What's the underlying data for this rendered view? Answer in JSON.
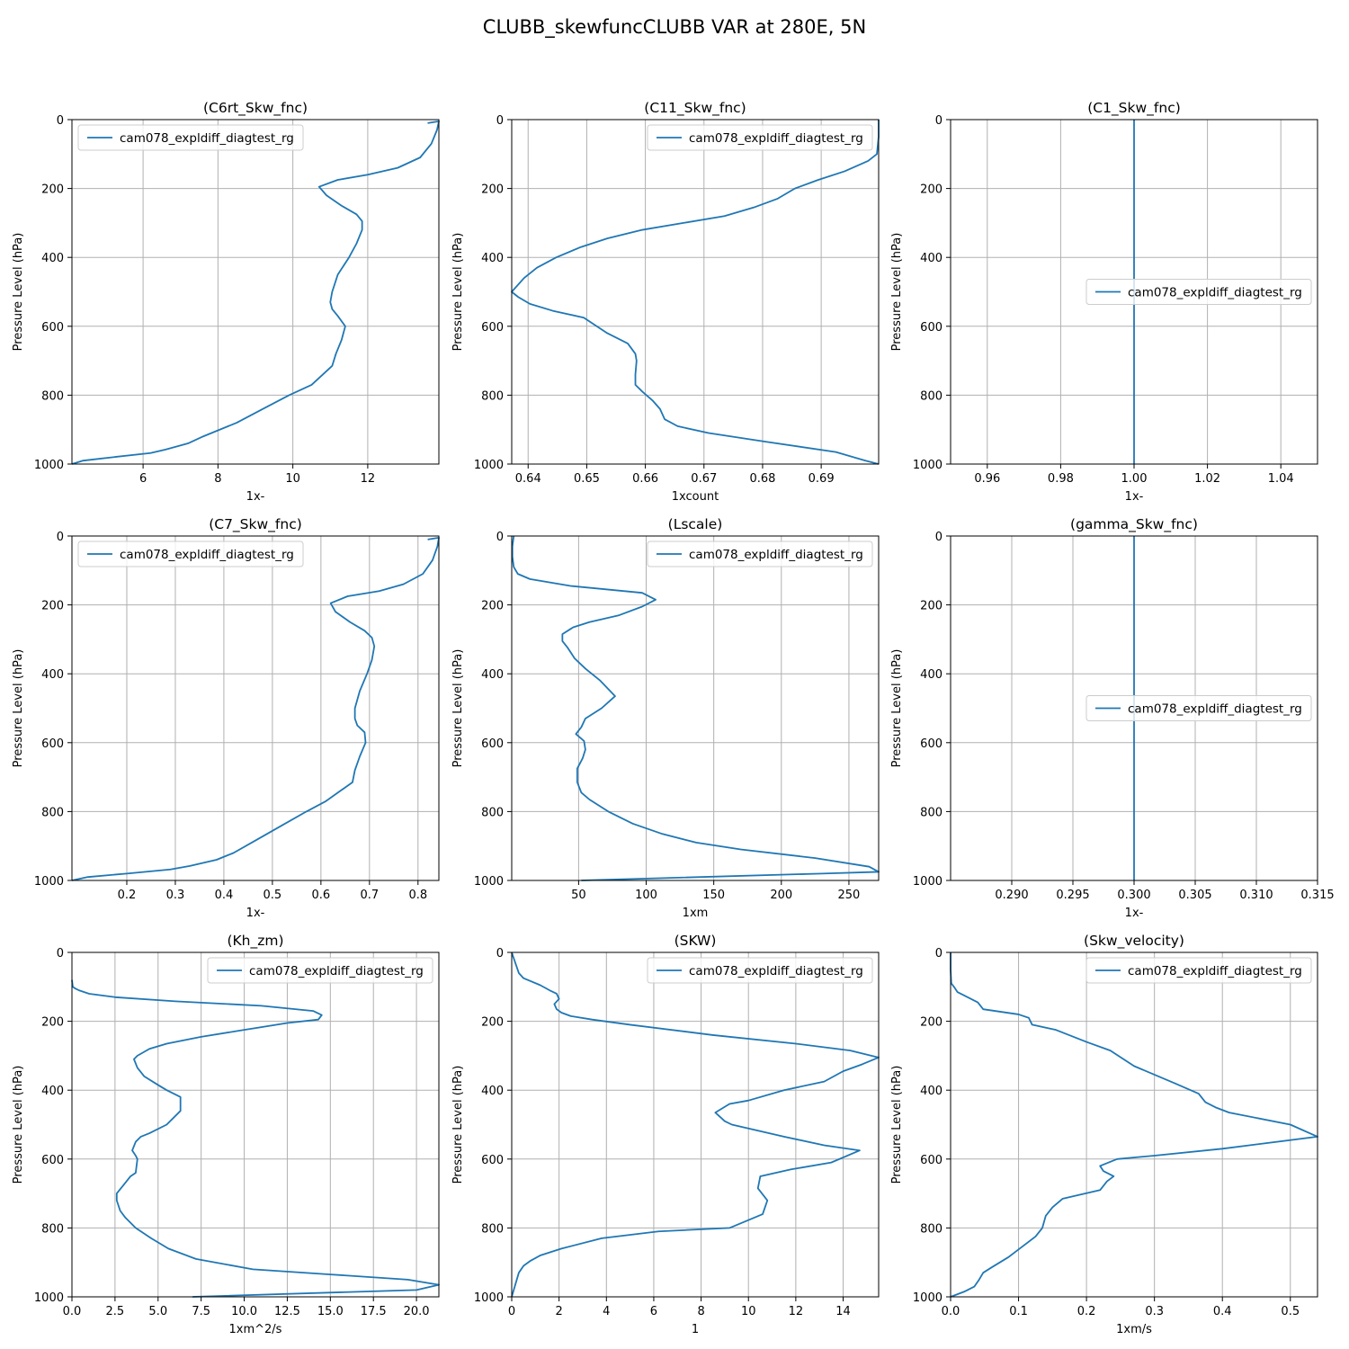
{
  "figure": {
    "title": "CLUBB_skewfuncCLUBB VAR at 280E, 5N",
    "line_color": "#1f77b4"
  },
  "chart_data": [
    {
      "type": "line",
      "title": "(C6rt_Skw_fnc)",
      "xlabel": "1x-",
      "ylabel": "Pressure Level (hPa)",
      "xlim": [
        4.1,
        13.9
      ],
      "ylim": [
        1000,
        0
      ],
      "y_inverted": true,
      "xticks": [
        6,
        8,
        10,
        12
      ],
      "xtick_labels": [
        "6",
        "8",
        "10",
        "12"
      ],
      "yticks": [
        0,
        200,
        400,
        600,
        800,
        1000
      ],
      "ytick_labels": [
        "0",
        "200",
        "400",
        "600",
        "800",
        "1000"
      ],
      "grid": true,
      "legend_position": "upper-left",
      "series": [
        {
          "name": "cam078_expldiff_diagtest_rg",
          "x": [
            13.6,
            13.9,
            13.85,
            13.7,
            13.4,
            12.8,
            12.0,
            11.2,
            10.7,
            10.9,
            11.3,
            11.7,
            11.85,
            11.85,
            11.7,
            11.5,
            11.2,
            11.05,
            11.0,
            11.05,
            11.2,
            11.4,
            11.3,
            11.15,
            11.05,
            10.8,
            10.5,
            9.9,
            9.2,
            8.5,
            7.6,
            7.2,
            6.6,
            6.2,
            5.2,
            4.4,
            4.1
          ],
          "y": [
            10,
            5,
            30,
            70,
            110,
            140,
            160,
            175,
            195,
            220,
            250,
            275,
            295,
            320,
            360,
            400,
            450,
            500,
            530,
            550,
            570,
            600,
            640,
            680,
            715,
            740,
            770,
            800,
            840,
            880,
            920,
            940,
            958,
            968,
            980,
            990,
            1000
          ]
        }
      ]
    },
    {
      "type": "line",
      "title": "(C11_Skw_fnc)",
      "xlabel": "1xcount",
      "ylabel": "Pressure Level (hPa)",
      "xlim": [
        0.6372,
        0.6998
      ],
      "ylim": [
        1000,
        0
      ],
      "y_inverted": true,
      "xticks": [
        0.64,
        0.65,
        0.66,
        0.67,
        0.68,
        0.69
      ],
      "xtick_labels": [
        "0.64",
        "0.65",
        "0.66",
        "0.67",
        "0.68",
        "0.69"
      ],
      "yticks": [
        0,
        200,
        400,
        600,
        800,
        1000
      ],
      "ytick_labels": [
        "0",
        "200",
        "400",
        "600",
        "800",
        "1000"
      ],
      "grid": true,
      "legend_position": "upper-right",
      "series": [
        {
          "name": "cam078_expldiff_diagtest_rg",
          "x": [
            0.6998,
            0.6998,
            0.6995,
            0.698,
            0.694,
            0.6895,
            0.6855,
            0.6825,
            0.6785,
            0.6735,
            0.6665,
            0.6595,
            0.6535,
            0.649,
            0.6448,
            0.6415,
            0.6393,
            0.6372,
            0.6383,
            0.6403,
            0.6442,
            0.6495,
            0.6535,
            0.657,
            0.6583,
            0.6585,
            0.6583,
            0.6583,
            0.6595,
            0.6612,
            0.6625,
            0.6633,
            0.6655,
            0.6708,
            0.6805,
            0.6925,
            0.6975,
            0.6998
          ],
          "y": [
            0,
            50,
            100,
            120,
            150,
            175,
            200,
            230,
            255,
            280,
            300,
            320,
            345,
            370,
            400,
            430,
            460,
            500,
            515,
            535,
            555,
            575,
            620,
            650,
            680,
            700,
            740,
            770,
            790,
            815,
            840,
            870,
            890,
            910,
            935,
            965,
            990,
            1000
          ]
        }
      ]
    },
    {
      "type": "line",
      "title": "(C1_Skw_fnc)",
      "xlabel": "1x-",
      "ylabel": "Pressure Level (hPa)",
      "xlim": [
        0.95,
        1.05
      ],
      "ylim": [
        1000,
        0
      ],
      "y_inverted": true,
      "xticks": [
        0.96,
        0.98,
        1.0,
        1.02,
        1.04
      ],
      "xtick_labels": [
        "0.96",
        "0.98",
        "1.00",
        "1.02",
        "1.04"
      ],
      "yticks": [
        0,
        200,
        400,
        600,
        800,
        1000
      ],
      "ytick_labels": [
        "0",
        "200",
        "400",
        "600",
        "800",
        "1000"
      ],
      "grid": true,
      "legend_position": "center-right",
      "series": [
        {
          "name": "cam078_expldiff_diagtest_rg",
          "x": [
            1.0,
            1.0
          ],
          "y": [
            0,
            1000
          ]
        }
      ]
    },
    {
      "type": "line",
      "title": "(C7_Skw_fnc)",
      "xlabel": "1x-",
      "ylabel": "Pressure Level (hPa)",
      "xlim": [
        0.087,
        0.843
      ],
      "ylim": [
        1000,
        0
      ],
      "y_inverted": true,
      "xticks": [
        0.2,
        0.3,
        0.4,
        0.5,
        0.6,
        0.7,
        0.8
      ],
      "xtick_labels": [
        "0.2",
        "0.3",
        "0.4",
        "0.5",
        "0.6",
        "0.7",
        "0.8"
      ],
      "yticks": [
        0,
        200,
        400,
        600,
        800,
        1000
      ],
      "ytick_labels": [
        "0",
        "200",
        "400",
        "600",
        "800",
        "1000"
      ],
      "grid": true,
      "legend_position": "upper-left",
      "series": [
        {
          "name": "cam078_expldiff_diagtest_rg",
          "x": [
            0.82,
            0.843,
            0.84,
            0.83,
            0.81,
            0.77,
            0.72,
            0.655,
            0.62,
            0.63,
            0.66,
            0.69,
            0.705,
            0.71,
            0.705,
            0.695,
            0.68,
            0.67,
            0.67,
            0.675,
            0.69,
            0.692,
            0.68,
            0.67,
            0.665,
            0.64,
            0.61,
            0.57,
            0.52,
            0.47,
            0.42,
            0.385,
            0.33,
            0.29,
            0.2,
            0.12,
            0.087
          ],
          "y": [
            10,
            5,
            30,
            70,
            110,
            140,
            160,
            175,
            195,
            220,
            250,
            275,
            295,
            320,
            360,
            400,
            450,
            500,
            530,
            550,
            570,
            600,
            640,
            680,
            715,
            740,
            770,
            800,
            840,
            880,
            920,
            940,
            958,
            968,
            980,
            990,
            1000
          ]
        }
      ]
    },
    {
      "type": "line",
      "title": "(Lscale)",
      "xlabel": "1xm",
      "ylabel": "Pressure Level (hPa)",
      "xlim": [
        0.5,
        272
      ],
      "ylim": [
        1000,
        0
      ],
      "y_inverted": true,
      "xticks": [
        50,
        100,
        150,
        200,
        250
      ],
      "xtick_labels": [
        "50",
        "100",
        "150",
        "200",
        "250"
      ],
      "yticks": [
        0,
        200,
        400,
        600,
        800,
        1000
      ],
      "ytick_labels": [
        "0",
        "200",
        "400",
        "600",
        "800",
        "1000"
      ],
      "grid": true,
      "legend_position": "upper-right",
      "series": [
        {
          "name": "cam078_expldiff_diagtest_rg",
          "x": [
            2,
            1,
            1,
            2,
            5,
            14,
            44,
            97,
            107,
            97,
            80,
            58,
            46,
            38,
            38,
            42,
            47,
            55,
            66,
            77,
            67,
            55,
            52,
            48,
            54,
            55,
            53,
            49,
            49,
            52,
            58,
            72,
            90,
            112,
            137,
            170,
            225,
            265,
            272,
            230,
            52
          ],
          "y": [
            0,
            30,
            60,
            90,
            110,
            125,
            145,
            165,
            185,
            205,
            230,
            250,
            265,
            285,
            305,
            325,
            355,
            385,
            420,
            465,
            500,
            530,
            555,
            575,
            595,
            620,
            645,
            675,
            715,
            745,
            765,
            800,
            835,
            865,
            890,
            910,
            935,
            960,
            975,
            980,
            1000
          ]
        }
      ]
    },
    {
      "type": "line",
      "title": "(gamma_Skw_fnc)",
      "xlabel": "1x-",
      "ylabel": "Pressure Level (hPa)",
      "xlim": [
        0.285,
        0.315
      ],
      "ylim": [
        1000,
        0
      ],
      "y_inverted": true,
      "xticks": [
        0.29,
        0.295,
        0.3,
        0.305,
        0.31,
        0.315
      ],
      "xtick_labels": [
        "0.290",
        "0.295",
        "0.300",
        "0.305",
        "0.310",
        "0.315"
      ],
      "yticks": [
        0,
        200,
        400,
        600,
        800,
        1000
      ],
      "ytick_labels": [
        "0",
        "200",
        "400",
        "600",
        "800",
        "1000"
      ],
      "grid": true,
      "legend_position": "center-right",
      "series": [
        {
          "name": "cam078_expldiff_diagtest_rg",
          "x": [
            0.3,
            0.3
          ],
          "y": [
            0,
            1000
          ]
        }
      ]
    },
    {
      "type": "line",
      "title": "(Kh_zm)",
      "xlabel": "1xm^2/s",
      "ylabel": "Pressure Level (hPa)",
      "xlim": [
        0,
        21.3
      ],
      "ylim": [
        1000,
        0
      ],
      "y_inverted": true,
      "xticks": [
        0,
        2.5,
        5,
        7.5,
        10,
        12.5,
        15,
        17.5,
        20
      ],
      "xtick_labels": [
        "0.0",
        "2.5",
        "5.0",
        "7.5",
        "10.0",
        "12.5",
        "15.0",
        "17.5",
        "20.0"
      ],
      "yticks": [
        0,
        200,
        400,
        600,
        800,
        1000
      ],
      "ytick_labels": [
        "0",
        "200",
        "400",
        "600",
        "800",
        "1000"
      ],
      "grid": true,
      "legend_position": "upper-right",
      "series": [
        {
          "name": "cam078_expldiff_diagtest_rg",
          "x": [
            0.0,
            0.05,
            0.2,
            0.4,
            1.0,
            2.5,
            6.0,
            11.0,
            14.0,
            14.5,
            14.3,
            12.5,
            10.0,
            7.5,
            5.5,
            4.5,
            3.8,
            3.6,
            3.8,
            4.2,
            5.0,
            5.5,
            6.3,
            6.3,
            5.5,
            4.5,
            4.0,
            3.7,
            3.5,
            3.7,
            3.8,
            3.7,
            3.4,
            3.0,
            2.6,
            2.6,
            2.8,
            3.1,
            3.7,
            4.6,
            5.6,
            7.2,
            10.5,
            15.0,
            19.5,
            21.3,
            20.0,
            7.0
          ],
          "y": [
            80,
            100,
            105,
            110,
            120,
            130,
            142,
            155,
            170,
            182,
            195,
            205,
            225,
            245,
            265,
            280,
            300,
            310,
            335,
            360,
            385,
            400,
            420,
            460,
            500,
            525,
            535,
            550,
            575,
            590,
            600,
            640,
            650,
            675,
            700,
            720,
            750,
            770,
            800,
            830,
            860,
            890,
            920,
            935,
            950,
            965,
            980,
            1000
          ]
        }
      ]
    },
    {
      "type": "line",
      "title": "(SKW)",
      "xlabel": "1",
      "ylabel": "Pressure Level (hPa)",
      "xlim": [
        0,
        15.5
      ],
      "ylim": [
        1000,
        0
      ],
      "y_inverted": true,
      "xticks": [
        0,
        2,
        4,
        6,
        8,
        10,
        12,
        14
      ],
      "xtick_labels": [
        "0",
        "2",
        "4",
        "6",
        "8",
        "10",
        "12",
        "14"
      ],
      "yticks": [
        0,
        200,
        400,
        600,
        800,
        1000
      ],
      "ytick_labels": [
        "0",
        "200",
        "400",
        "600",
        "800",
        "1000"
      ],
      "grid": true,
      "legend_position": "upper-right",
      "series": [
        {
          "name": "cam078_expldiff_diagtest_rg",
          "x": [
            0.0,
            0.3,
            0.5,
            1.2,
            1.6,
            1.9,
            2.0,
            1.8,
            1.9,
            2.1,
            2.5,
            3.4,
            5.0,
            8.5,
            12.0,
            14.3,
            15.5,
            14.8,
            14.0,
            13.2,
            11.5,
            10.0,
            9.2,
            8.6,
            9.0,
            9.3,
            11.5,
            13.2,
            14.7,
            13.5,
            11.8,
            10.5,
            10.4,
            10.8,
            10.6,
            9.2,
            6.2,
            3.8,
            2.1,
            1.2,
            0.8,
            0.5,
            0.3,
            0.0
          ],
          "y": [
            0,
            60,
            75,
            95,
            110,
            120,
            135,
            150,
            165,
            175,
            185,
            195,
            210,
            240,
            265,
            285,
            305,
            325,
            345,
            375,
            400,
            430,
            440,
            465,
            490,
            500,
            535,
            560,
            575,
            610,
            630,
            650,
            685,
            720,
            760,
            800,
            810,
            830,
            860,
            880,
            895,
            910,
            930,
            1000
          ]
        }
      ]
    },
    {
      "type": "line",
      "title": "(Skw_velocity)",
      "xlabel": "1xm/s",
      "ylabel": "Pressure Level (hPa)",
      "xlim": [
        0,
        0.54
      ],
      "ylim": [
        1000,
        0
      ],
      "y_inverted": true,
      "xticks": [
        0.0,
        0.1,
        0.2,
        0.3,
        0.4,
        0.5
      ],
      "xtick_labels": [
        "0.0",
        "0.1",
        "0.2",
        "0.3",
        "0.4",
        "0.5"
      ],
      "yticks": [
        0,
        200,
        400,
        600,
        800,
        1000
      ],
      "ytick_labels": [
        "0",
        "200",
        "400",
        "600",
        "800",
        "1000"
      ],
      "grid": true,
      "legend_position": "upper-right",
      "series": [
        {
          "name": "cam078_expldiff_diagtest_rg",
          "x": [
            0.0,
            0.0,
            0.001,
            0.005,
            0.01,
            0.025,
            0.04,
            0.048,
            0.1,
            0.115,
            0.12,
            0.155,
            0.2,
            0.235,
            0.27,
            0.33,
            0.365,
            0.375,
            0.39,
            0.41,
            0.5,
            0.54,
            0.4,
            0.3,
            0.245,
            0.22,
            0.225,
            0.24,
            0.23,
            0.22,
            0.165,
            0.15,
            0.14,
            0.135,
            0.125,
            0.105,
            0.085,
            0.06,
            0.048,
            0.042,
            0.035,
            0.02,
            0.0
          ],
          "y": [
            0,
            50,
            90,
            100,
            115,
            130,
            145,
            165,
            180,
            190,
            210,
            225,
            260,
            285,
            330,
            380,
            410,
            435,
            450,
            465,
            500,
            535,
            570,
            590,
            600,
            620,
            635,
            650,
            665,
            690,
            715,
            740,
            765,
            800,
            825,
            855,
            885,
            915,
            930,
            950,
            970,
            985,
            1000
          ]
        }
      ]
    }
  ]
}
